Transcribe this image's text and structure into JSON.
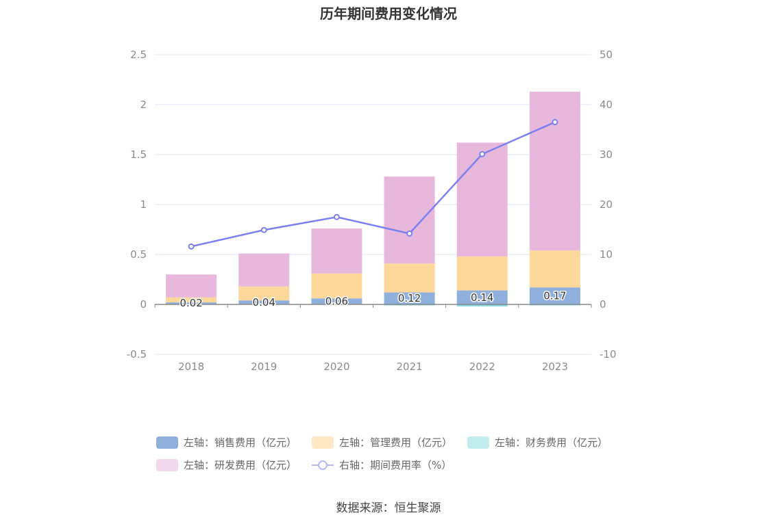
{
  "title": "历年期间费用变化情况",
  "source": "数据来源：恒生聚源",
  "colors": {
    "sales": "#8fb0dd",
    "admin": "#fed89b",
    "finance": "#84dbe0",
    "rd": "#e7b8db",
    "rate_line": "#7b80f0",
    "grid": "#e3e3f3",
    "axis_zero": "#888888"
  },
  "legend": [
    {
      "label": "左轴：销售费用（亿元）",
      "color": "#8fb0dd",
      "type": "bar"
    },
    {
      "label": "左轴：管理费用（亿元）",
      "color": "#fde8c6",
      "type": "bar"
    },
    {
      "label": "左轴：财务费用（亿元）",
      "color": "#c2ecee",
      "type": "bar"
    },
    {
      "label": "左轴：研发费用（亿元）",
      "color": "#f2d8ec",
      "type": "bar"
    },
    {
      "label": "右轴：期间费用率（%）",
      "color": "#b3b8f7",
      "type": "line"
    }
  ],
  "chart_data": {
    "type": "bar",
    "stacked": true,
    "title": "历年期间费用变化情况",
    "categories": [
      "2018",
      "2019",
      "2020",
      "2021",
      "2022",
      "2023"
    ],
    "y_left": {
      "ticks": [
        "-0.5",
        "0",
        "0.5",
        "1",
        "1.5",
        "2",
        "2.5"
      ],
      "ylim": [
        -0.5,
        2.5
      ]
    },
    "y_right": {
      "ticks": [
        "-10",
        "0",
        "10",
        "20",
        "30",
        "40",
        "50"
      ],
      "ylim": [
        -10,
        50
      ]
    },
    "grid": true,
    "legend_position": "bottom",
    "series": [
      {
        "name": "左轴：销售费用（亿元）",
        "axis": "left",
        "type": "bar",
        "values": [
          0.02,
          0.04,
          0.06,
          0.12,
          0.14,
          0.17
        ],
        "data_labels": [
          "0.02",
          "0.04",
          "0.06",
          "0.12",
          "0.14",
          "0.17"
        ]
      },
      {
        "name": "左轴：管理费用（亿元）",
        "axis": "left",
        "type": "bar",
        "values": [
          0.05,
          0.14,
          0.25,
          0.29,
          0.34,
          0.37
        ]
      },
      {
        "name": "左轴：财务费用（亿元）",
        "axis": "left",
        "type": "bar",
        "values": [
          0.0,
          0.0,
          0.0,
          -0.01,
          -0.02,
          -0.01
        ]
      },
      {
        "name": "左轴：研发费用（亿元）",
        "axis": "left",
        "type": "bar",
        "values": [
          0.23,
          0.33,
          0.45,
          0.87,
          1.14,
          1.59
        ]
      },
      {
        "name": "右轴：期间费用率（%）",
        "axis": "right",
        "type": "line",
        "values": [
          11.6,
          14.9,
          17.5,
          14.2,
          30.1,
          36.5
        ]
      }
    ]
  }
}
